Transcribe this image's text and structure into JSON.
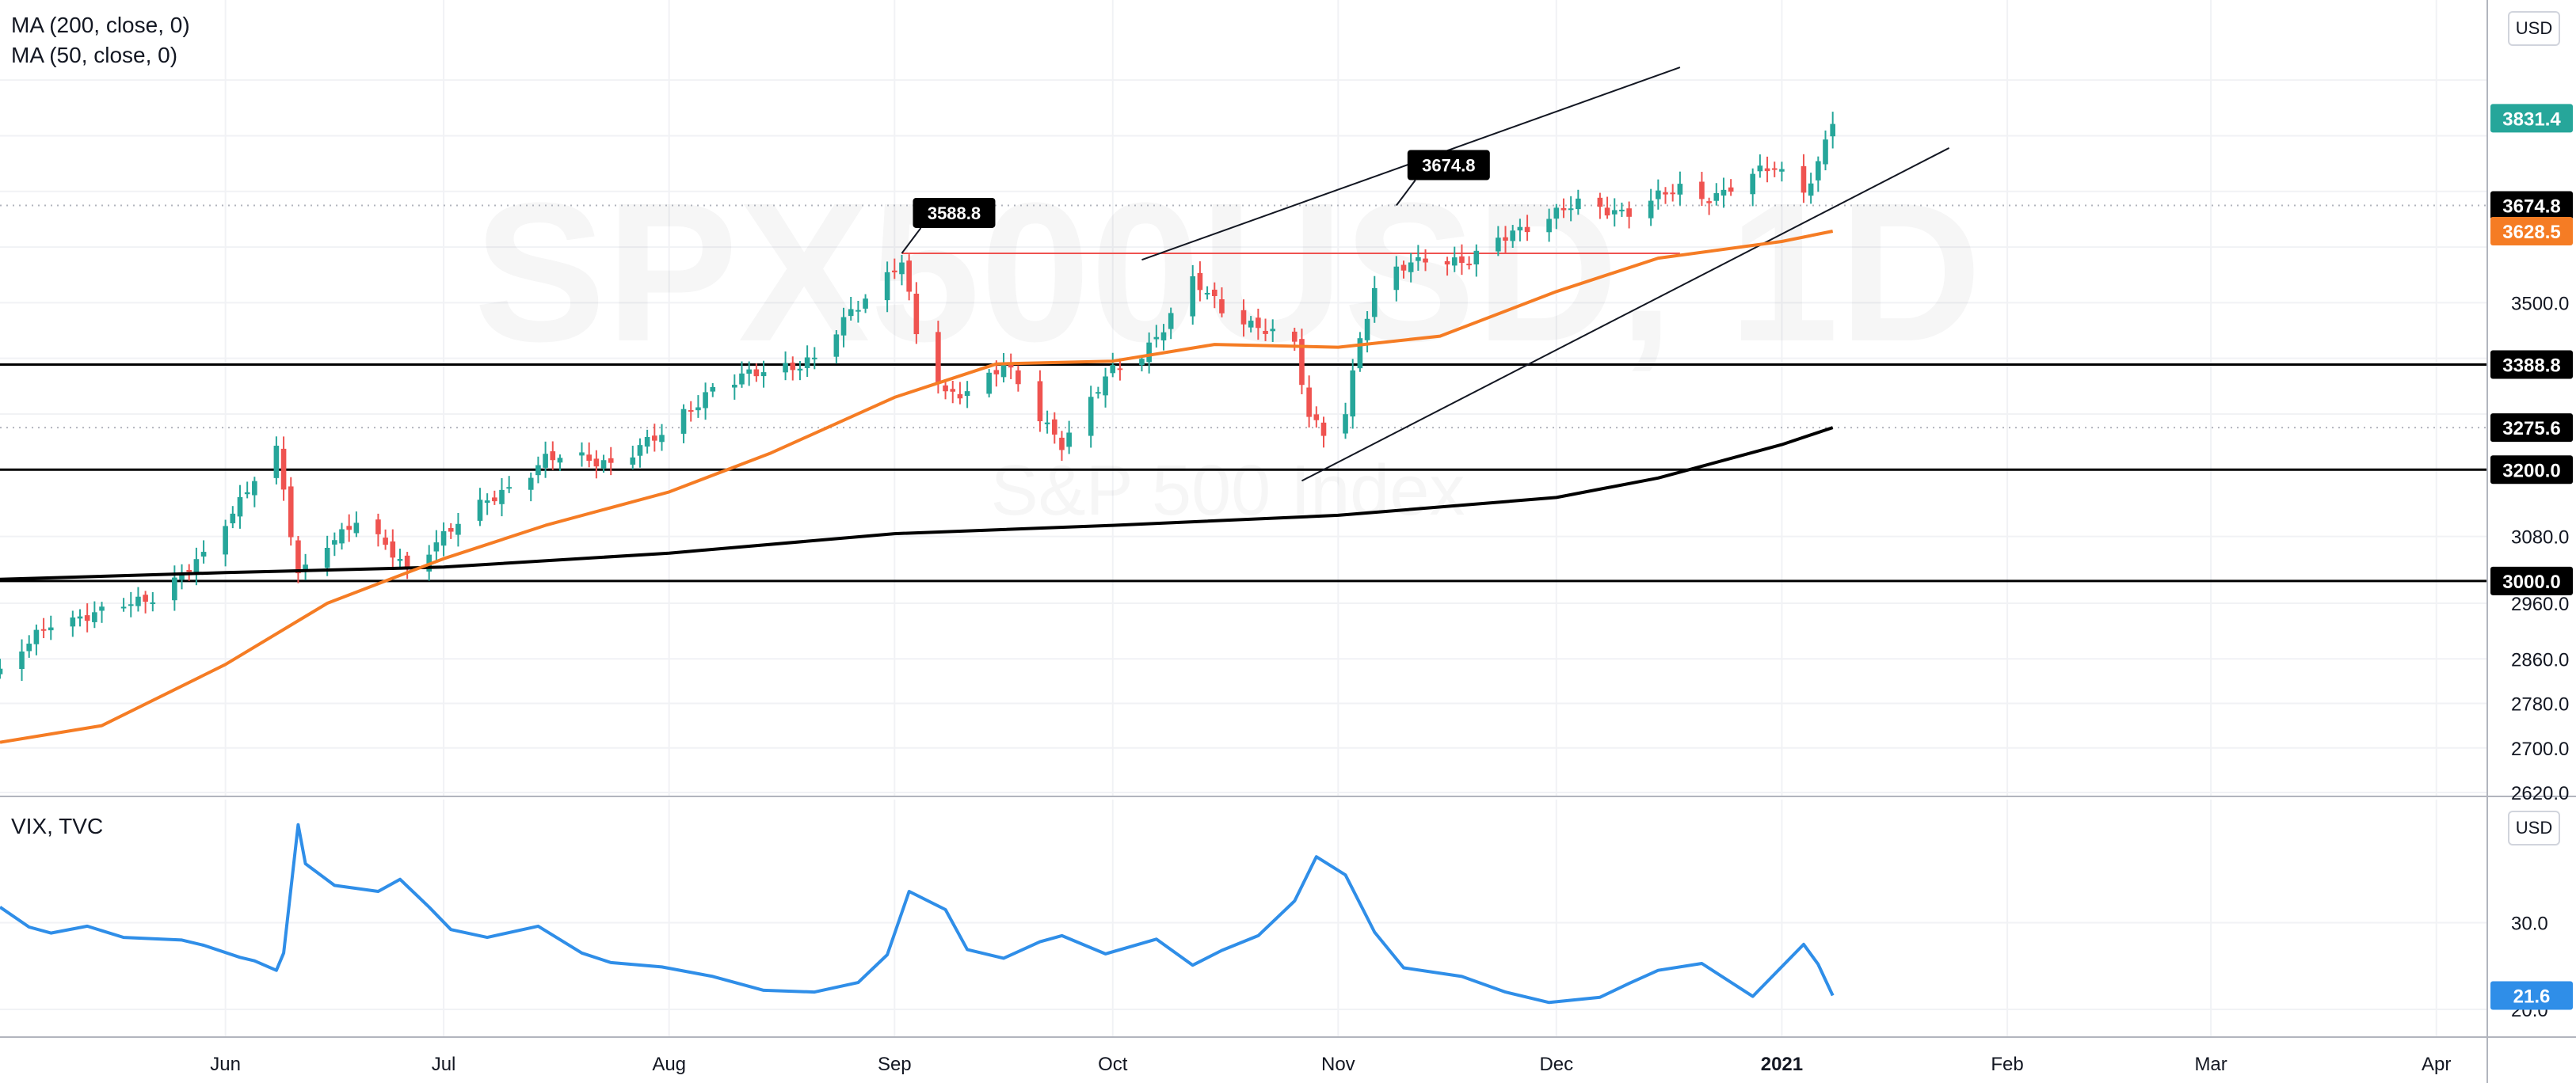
{
  "main_legend": [
    "MA (200, close, 0)",
    "MA (50, close, 0)"
  ],
  "vix_legend": "VIX, TVC",
  "currency": "USD",
  "watermark": {
    "symbol": "SPX500USD, 1D",
    "description": "S&P 500 Index"
  },
  "colors": {
    "up": "#26a69a",
    "down": "#ef5350",
    "ma50": "#f57c24",
    "ma200": "#000000",
    "vix": "#2f8ee8",
    "grid": "#f1f2f5",
    "last_price_bg": "#26a69a",
    "hline": "#000000"
  },
  "chart_data": [
    {
      "type": "candlestick",
      "title": "",
      "ylim": [
        2620,
        3960
      ],
      "xlim": [
        "2020-05-01",
        "2021-04-08"
      ],
      "y_ticks": [
        2620,
        2700,
        2780,
        2860,
        2960,
        3080,
        3200,
        3300,
        3400,
        3500,
        3600,
        3700,
        3800,
        3900
      ],
      "y_ticks_shown": [
        "2620.0",
        "2700.0",
        "2780.0",
        "2860.0",
        "2960.0",
        "3080.0",
        "3500.0"
      ],
      "x_ticks": [
        {
          "date": "2020-06-01",
          "label": "Jun"
        },
        {
          "date": "2020-07-01",
          "label": "Jul"
        },
        {
          "date": "2020-08-01",
          "label": "Aug"
        },
        {
          "date": "2020-09-01",
          "label": "Sep"
        },
        {
          "date": "2020-10-01",
          "label": "Oct"
        },
        {
          "date": "2020-11-01",
          "label": "Nov"
        },
        {
          "date": "2020-12-01",
          "label": "Dec"
        },
        {
          "date": "2021-01-01",
          "label": "2021"
        },
        {
          "date": "2021-02-01",
          "label": "Feb"
        },
        {
          "date": "2021-03-01",
          "label": "Mar"
        },
        {
          "date": "2021-04-01",
          "label": "Apr"
        }
      ],
      "close_anchors": [
        [
          "2020-05-01",
          2830
        ],
        [
          "2020-05-08",
          2930
        ],
        [
          "2020-05-15",
          2940
        ],
        [
          "2020-05-22",
          2975
        ],
        [
          "2020-05-29",
          3040
        ],
        [
          "2020-06-05",
          3190
        ],
        [
          "2020-06-08",
          3235
        ],
        [
          "2020-06-11",
          3005
        ],
        [
          "2020-06-15",
          3070
        ],
        [
          "2020-06-19",
          3110
        ],
        [
          "2020-06-26",
          3020
        ],
        [
          "2020-06-30",
          3075
        ],
        [
          "2020-07-08",
          3150
        ],
        [
          "2020-07-15",
          3220
        ],
        [
          "2020-07-24",
          3215
        ],
        [
          "2020-07-31",
          3260
        ],
        [
          "2020-08-07",
          3350
        ],
        [
          "2020-08-14",
          3375
        ],
        [
          "2020-08-21",
          3400
        ],
        [
          "2020-08-28",
          3510
        ],
        [
          "2020-09-02",
          3580
        ],
        [
          "2020-09-04",
          3440
        ],
        [
          "2020-09-08",
          3330
        ],
        [
          "2020-09-11",
          3345
        ],
        [
          "2020-09-16",
          3390
        ],
        [
          "2020-09-21",
          3290
        ],
        [
          "2020-09-24",
          3250
        ],
        [
          "2020-09-30",
          3365
        ],
        [
          "2020-10-05",
          3405
        ],
        [
          "2020-10-09",
          3480
        ],
        [
          "2020-10-12",
          3540
        ],
        [
          "2020-10-16",
          3485
        ],
        [
          "2020-10-22",
          3455
        ],
        [
          "2020-10-26",
          3420
        ],
        [
          "2020-10-28",
          3290
        ],
        [
          "2020-10-30",
          3270
        ],
        [
          "2020-11-02",
          3310
        ],
        [
          "2020-11-04",
          3440
        ],
        [
          "2020-11-06",
          3515
        ],
        [
          "2020-11-09",
          3555
        ],
        [
          "2020-11-13",
          3585
        ],
        [
          "2020-11-19",
          3570
        ],
        [
          "2020-11-25",
          3630
        ],
        [
          "2020-12-04",
          3675
        ],
        [
          "2020-12-11",
          3665
        ],
        [
          "2020-12-18",
          3705
        ],
        [
          "2020-12-21",
          3690
        ],
        [
          "2020-12-24",
          3700
        ],
        [
          "2020-12-31",
          3745
        ],
        [
          "2021-01-04",
          3705
        ],
        [
          "2021-01-06",
          3750
        ],
        [
          "2021-01-08",
          3825
        ]
      ],
      "ma50": [
        [
          "2020-05-01",
          2710
        ],
        [
          "2020-05-15",
          2740
        ],
        [
          "2020-06-01",
          2850
        ],
        [
          "2020-06-15",
          2960
        ],
        [
          "2020-07-01",
          3040
        ],
        [
          "2020-07-15",
          3100
        ],
        [
          "2020-08-01",
          3160
        ],
        [
          "2020-08-15",
          3230
        ],
        [
          "2020-09-01",
          3330
        ],
        [
          "2020-09-15",
          3390
        ],
        [
          "2020-10-01",
          3395
        ],
        [
          "2020-10-15",
          3425
        ],
        [
          "2020-11-01",
          3420
        ],
        [
          "2020-11-15",
          3440
        ],
        [
          "2020-12-01",
          3520
        ],
        [
          "2020-12-15",
          3580
        ],
        [
          "2021-01-01",
          3610
        ],
        [
          "2021-01-08",
          3628.5
        ]
      ],
      "ma200": [
        [
          "2020-05-01",
          3003
        ],
        [
          "2020-06-01",
          3015
        ],
        [
          "2020-07-01",
          3025
        ],
        [
          "2020-08-01",
          3050
        ],
        [
          "2020-09-01",
          3085
        ],
        [
          "2020-10-01",
          3100
        ],
        [
          "2020-11-01",
          3118
        ],
        [
          "2020-12-01",
          3150
        ],
        [
          "2020-12-15",
          3185
        ],
        [
          "2021-01-01",
          3245
        ],
        [
          "2021-01-08",
          3275.6
        ]
      ],
      "horizontal_levels": [
        3388.8,
        3200.0,
        3000.0
      ],
      "resistance_segment": {
        "y": 3588.8,
        "x0": "2020-09-02",
        "x1": "2020-12-18"
      },
      "trend_lines": [
        {
          "x0": "2020-10-05",
          "y0": 3577,
          "x1": "2020-12-18",
          "y1": 3923
        },
        {
          "x0": "2020-10-27",
          "y0": 3180,
          "x1": "2021-01-24",
          "y1": 3778
        }
      ],
      "callouts": [
        {
          "label": "3588.8",
          "date": "2020-09-02",
          "value": 3588.8
        },
        {
          "label": "3674.8",
          "date": "2020-11-09",
          "value": 3674.8
        }
      ],
      "price_labels": [
        {
          "text": "3831.4",
          "value": 3831.4,
          "style": "last"
        },
        {
          "text": "3674.8",
          "value": 3674.8,
          "style": "black"
        },
        {
          "text": "3628.5",
          "value": 3628.5,
          "style": "orange"
        },
        {
          "text": "3388.8",
          "value": 3388.8,
          "style": "black"
        },
        {
          "text": "3275.6",
          "value": 3275.6,
          "style": "black"
        },
        {
          "text": "3200.0",
          "value": 3200.0,
          "style": "black"
        },
        {
          "text": "3000.0",
          "value": 3000.0,
          "style": "black"
        }
      ],
      "dotted_levels": [
        3674.8,
        3275.6
      ]
    },
    {
      "type": "line",
      "title": "VIX, TVC",
      "ylim": [
        19,
        42
      ],
      "y_ticks_shown": [
        {
          "value": 30,
          "label": "30.0"
        },
        {
          "value": 20,
          "label": "20.0"
        }
      ],
      "last_value": "21.6",
      "series": [
        [
          "2020-05-01",
          31.8
        ],
        [
          "2020-05-05",
          29.5
        ],
        [
          "2020-05-08",
          28.8
        ],
        [
          "2020-05-13",
          29.6
        ],
        [
          "2020-05-18",
          28.3
        ],
        [
          "2020-05-26",
          28.0
        ],
        [
          "2020-05-29",
          27.4
        ],
        [
          "2020-06-03",
          26.0
        ],
        [
          "2020-06-05",
          25.6
        ],
        [
          "2020-06-08",
          24.5
        ],
        [
          "2020-06-09",
          26.5
        ],
        [
          "2020-06-11",
          41.3
        ],
        [
          "2020-06-12",
          36.8
        ],
        [
          "2020-06-16",
          34.3
        ],
        [
          "2020-06-22",
          33.6
        ],
        [
          "2020-06-25",
          35.0
        ],
        [
          "2020-06-29",
          31.8
        ],
        [
          "2020-07-02",
          29.2
        ],
        [
          "2020-07-07",
          28.3
        ],
        [
          "2020-07-14",
          29.6
        ],
        [
          "2020-07-20",
          26.5
        ],
        [
          "2020-07-24",
          25.4
        ],
        [
          "2020-07-31",
          24.9
        ],
        [
          "2020-08-07",
          23.8
        ],
        [
          "2020-08-14",
          22.2
        ],
        [
          "2020-08-21",
          22.0
        ],
        [
          "2020-08-27",
          23.1
        ],
        [
          "2020-08-31",
          26.3
        ],
        [
          "2020-09-03",
          33.6
        ],
        [
          "2020-09-08",
          31.5
        ],
        [
          "2020-09-11",
          26.9
        ],
        [
          "2020-09-16",
          25.9
        ],
        [
          "2020-09-21",
          27.8
        ],
        [
          "2020-09-24",
          28.5
        ],
        [
          "2020-09-30",
          26.4
        ],
        [
          "2020-10-07",
          28.1
        ],
        [
          "2020-10-12",
          25.1
        ],
        [
          "2020-10-16",
          26.8
        ],
        [
          "2020-10-21",
          28.5
        ],
        [
          "2020-10-26",
          32.5
        ],
        [
          "2020-10-29",
          37.6
        ],
        [
          "2020-11-02",
          35.5
        ],
        [
          "2020-11-06",
          28.9
        ],
        [
          "2020-11-10",
          24.8
        ],
        [
          "2020-11-18",
          23.8
        ],
        [
          "2020-11-24",
          22.0
        ],
        [
          "2020-11-30",
          20.8
        ],
        [
          "2020-12-07",
          21.4
        ],
        [
          "2020-12-11",
          23.0
        ],
        [
          "2020-12-15",
          24.5
        ],
        [
          "2020-12-21",
          25.3
        ],
        [
          "2020-12-28",
          21.5
        ],
        [
          "2021-01-04",
          27.5
        ],
        [
          "2021-01-06",
          25.2
        ],
        [
          "2021-01-08",
          21.6
        ]
      ]
    }
  ]
}
